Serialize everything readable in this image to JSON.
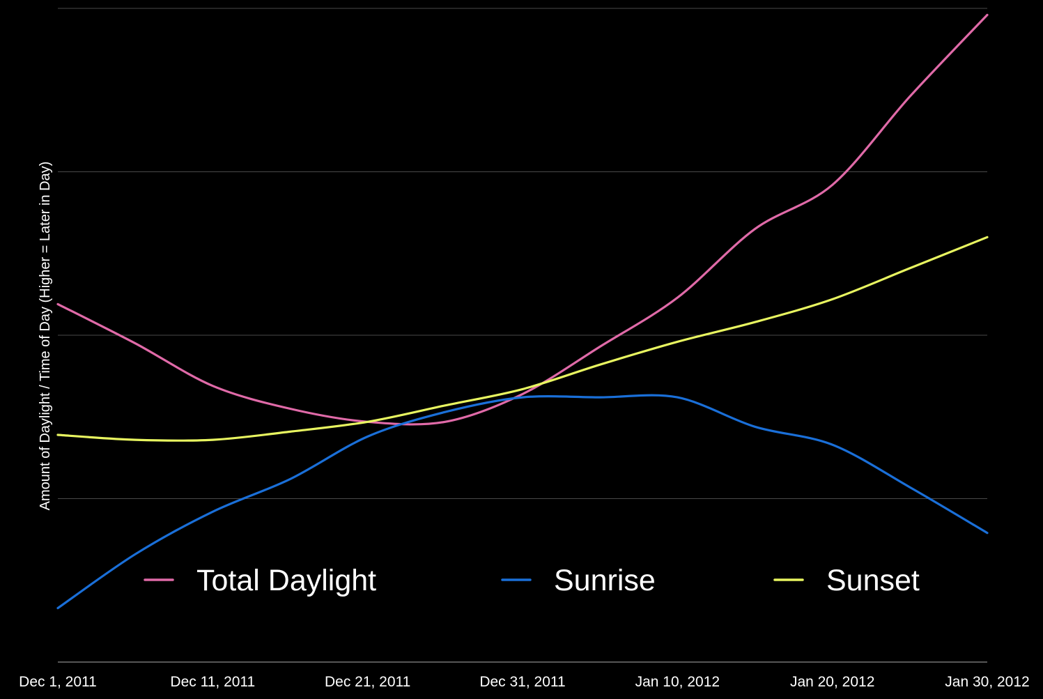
{
  "chart_data": {
    "type": "line",
    "title": "",
    "xlabel": "",
    "ylabel": "Amount of Daylight / Time of Day (Higher = Later in Day)",
    "x": [
      "Dec 1, 2011",
      "Dec 6, 2011",
      "Dec 11, 2011",
      "Dec 16, 2011",
      "Dec 21, 2011",
      "Dec 26, 2011",
      "Dec 31, 2011",
      "Jan 5, 2012",
      "Jan 10, 2012",
      "Jan 15, 2012",
      "Jan 20, 2012",
      "Jan 25, 2012",
      "Jan 30, 2012"
    ],
    "x_ticks": [
      "Dec 1, 2011",
      "Dec 11, 2011",
      "Dec 21, 2011",
      "Dec 31, 2011",
      "Jan 10, 2012",
      "Jan 20, 2012",
      "Jan 30, 2012"
    ],
    "y_ticks": [],
    "ylim": [
      0,
      4
    ],
    "grid": true,
    "legend_position": "bottom-center",
    "series": [
      {
        "name": "Total Daylight",
        "color": "#e06aa8",
        "values": [
          2.19,
          1.95,
          1.69,
          1.55,
          1.47,
          1.47,
          1.64,
          1.93,
          2.23,
          2.65,
          2.92,
          3.46,
          3.96
        ]
      },
      {
        "name": "Sunrise",
        "color": "#1a6fd8",
        "values": [
          0.33,
          0.66,
          0.92,
          1.12,
          1.38,
          1.53,
          1.62,
          1.62,
          1.62,
          1.44,
          1.33,
          1.07,
          0.79
        ]
      },
      {
        "name": "Sunset",
        "color": "#e8f560",
        "values": [
          1.39,
          1.36,
          1.36,
          1.41,
          1.47,
          1.57,
          1.67,
          1.82,
          1.96,
          2.08,
          2.22,
          2.41,
          2.6
        ]
      }
    ]
  }
}
